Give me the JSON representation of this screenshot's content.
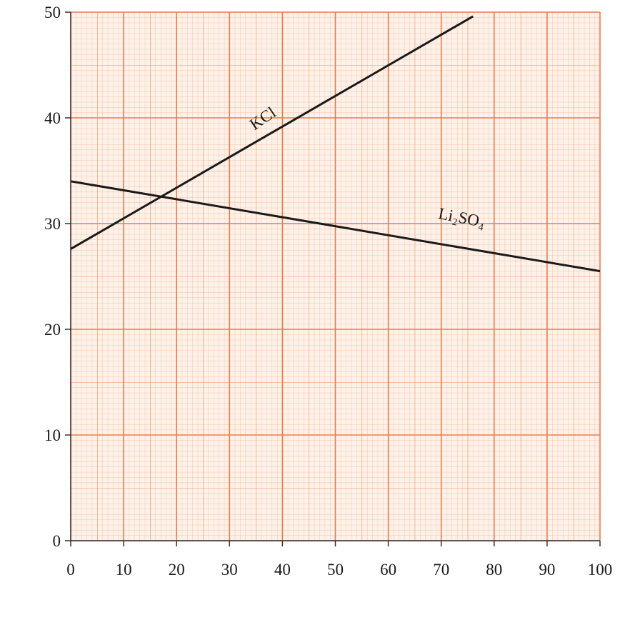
{
  "chart_data": {
    "type": "line",
    "series": [
      {
        "name": "KCl",
        "color": "#1a1a1a",
        "x": [
          0,
          76
        ],
        "values": [
          27.6,
          49.6
        ]
      },
      {
        "name": "Li₂SO₄",
        "color": "#1a1a1a",
        "x": [
          0,
          100
        ],
        "values": [
          34,
          25.5
        ]
      }
    ],
    "xlim": [
      0,
      100
    ],
    "xticks": [
      0,
      10,
      20,
      30,
      40,
      50,
      60,
      70,
      80,
      90,
      100
    ],
    "ylim": [
      0,
      50
    ],
    "yticks": [
      0,
      10,
      20,
      30,
      40,
      50
    ],
    "grid": true,
    "grid_color": "#f07a4a"
  }
}
